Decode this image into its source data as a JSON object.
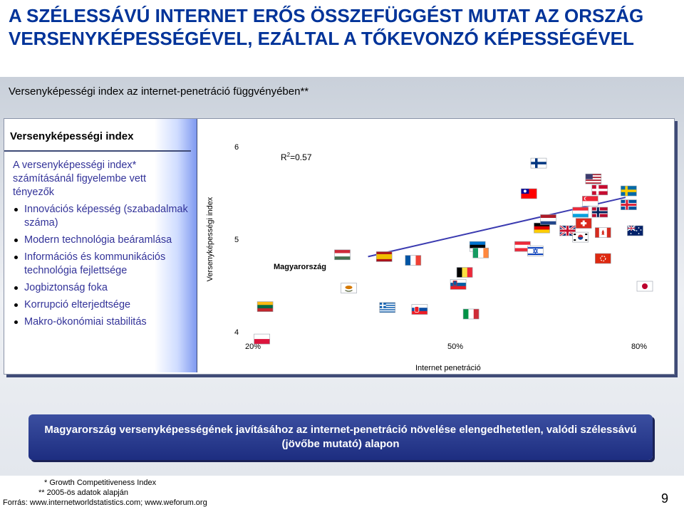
{
  "title": "A SZÉLESSÁVÚ INTERNET ERŐS ÖSSZEFÜGGÉST MUTAT AZ ORSZÁG VERSENYKÉPESSÉGÉVEL, EZÁLTAL A TŐKEVONZÓ KÉPESSÉGÉVEL",
  "subtitle": "Versenyképességi index az internet-penetráció függvényében**",
  "left_panel": {
    "heading": "Versenyképességi index",
    "intro": "A versenyképességi index* számításánál figyelembe vett tényezők",
    "factors": [
      "Innovációs képesség (szabadalmak száma)",
      "Modern technológia beáramlása",
      "Információs és kommunikációs technológia fejlettsége",
      "Jogbiztonság foka",
      "Korrupció elterjedtsége",
      "Makro-ökonómiai stabilitás"
    ]
  },
  "chart_data": {
    "type": "scatter",
    "xlabel": "Internet penetráció",
    "ylabel": "Versenyképességi index",
    "x_ticks": [
      "20%",
      "50%",
      "80%"
    ],
    "y_ticks": [
      "4",
      "5",
      "6"
    ],
    "xlim": [
      20,
      80
    ],
    "ylim": [
      4,
      6
    ],
    "r2_prefix": "R",
    "r2_sup": "2",
    "r2_suffix": "=0.57",
    "highlight_label": "Magyarország",
    "trendline": [
      [
        38,
        4.82
      ],
      [
        78,
        5.46
      ]
    ],
    "points": [
      {
        "x": 21.5,
        "y": 3.93,
        "flag": "poland"
      },
      {
        "x": 22,
        "y": 4.28,
        "flag": "lithuania"
      },
      {
        "x": 41,
        "y": 4.27,
        "flag": "greece"
      },
      {
        "x": 46,
        "y": 4.25,
        "flag": "slovakia"
      },
      {
        "x": 54,
        "y": 4.2,
        "flag": "italy"
      },
      {
        "x": 35,
        "y": 4.48,
        "flag": "cyprus"
      },
      {
        "x": 34,
        "y": 4.84,
        "flag": "hungary",
        "highlight": true
      },
      {
        "x": 40.5,
        "y": 4.82,
        "flag": "spain"
      },
      {
        "x": 45,
        "y": 4.78,
        "flag": "france"
      },
      {
        "x": 53,
        "y": 4.65,
        "flag": "belgium"
      },
      {
        "x": 52,
        "y": 4.52,
        "flag": "slovenia"
      },
      {
        "x": 55,
        "y": 4.93,
        "flag": "estonia"
      },
      {
        "x": 55.5,
        "y": 4.86,
        "flag": "ireland"
      },
      {
        "x": 62,
        "y": 4.93,
        "flag": "austria"
      },
      {
        "x": 64,
        "y": 4.88,
        "flag": "israel"
      },
      {
        "x": 65,
        "y": 5.13,
        "flag": "germany"
      },
      {
        "x": 69,
        "y": 5.1,
        "flag": "uk"
      },
      {
        "x": 66,
        "y": 5.22,
        "flag": "netherlands"
      },
      {
        "x": 71,
        "y": 5.03,
        "flag": "korea"
      },
      {
        "x": 71.5,
        "y": 5.18,
        "flag": "switzerland"
      },
      {
        "x": 74.5,
        "y": 5.08,
        "flag": "canada"
      },
      {
        "x": 72.5,
        "y": 5.42,
        "flag": "singapore"
      },
      {
        "x": 71,
        "y": 5.3,
        "flag": "luxembourg"
      },
      {
        "x": 74,
        "y": 5.3,
        "flag": "norway"
      },
      {
        "x": 78.5,
        "y": 5.38,
        "flag": "iceland"
      },
      {
        "x": 73,
        "y": 5.66,
        "flag": "usa"
      },
      {
        "x": 78.5,
        "y": 5.53,
        "flag": "sweden"
      },
      {
        "x": 64.5,
        "y": 5.83,
        "flag": "finland"
      },
      {
        "x": 74,
        "y": 5.54,
        "flag": "denmark"
      },
      {
        "x": 63,
        "y": 5.5,
        "flag": "taiwan"
      },
      {
        "x": 79.5,
        "y": 5.1,
        "flag": "australia"
      },
      {
        "x": 74.5,
        "y": 4.8,
        "flag": "hongkong"
      },
      {
        "x": 81,
        "y": 4.5,
        "flag": "japan"
      }
    ]
  },
  "banner": "Magyarország versenyképességének javításához az internet-penetráció növelése elengedhetetlen, valódi szélessávú (jövőbe mutató) alapon",
  "footnotes": {
    "note1": "* Growth Competitiveness Index",
    "note2": "** 2005-ös adatok alapján",
    "source": "Forrás: www.internetworldstatistics.com; www.weforum.org"
  },
  "page_number": "9"
}
